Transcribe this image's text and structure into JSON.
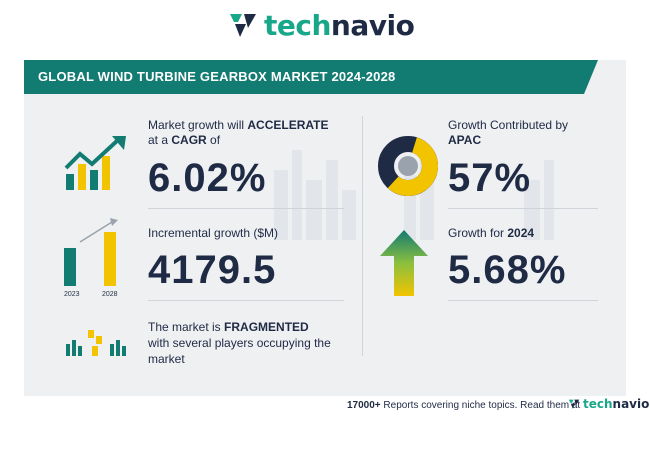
{
  "brand": {
    "name_prefix": "tech",
    "name_suffix": "navio",
    "colors": {
      "navy": "#1f2a44",
      "teal": "#127b72",
      "green": "#19a78a",
      "yellow": "#f2c400"
    }
  },
  "header": {
    "title": "GLOBAL WIND TURBINE GEARBOX MARKET 2024-2028"
  },
  "cagr": {
    "line1_pre": "Market growth will ",
    "line1_bold": "ACCELERATE",
    "line2_pre": "at a ",
    "line2_bold": "CAGR",
    "line2_post": "  of",
    "value": "6.02%"
  },
  "incremental": {
    "label": "Incremental growth ($M)",
    "value": "4179.5",
    "year_start": "2023",
    "year_end": "2028"
  },
  "fragmented": {
    "line1_pre": "The market is ",
    "line1_bold": "FRAGMENTED",
    "line2": "with several players occupying the",
    "line3": "market"
  },
  "region": {
    "line1": "Growth Contributed by",
    "bold": "APAC",
    "value": "57%",
    "share": 0.57
  },
  "yoy": {
    "label_pre": "Growth for  ",
    "label_bold": "2024",
    "value": "5.68%"
  },
  "footer": {
    "count": "17000+",
    "text": " Reports covering niche topics. Read them at"
  }
}
